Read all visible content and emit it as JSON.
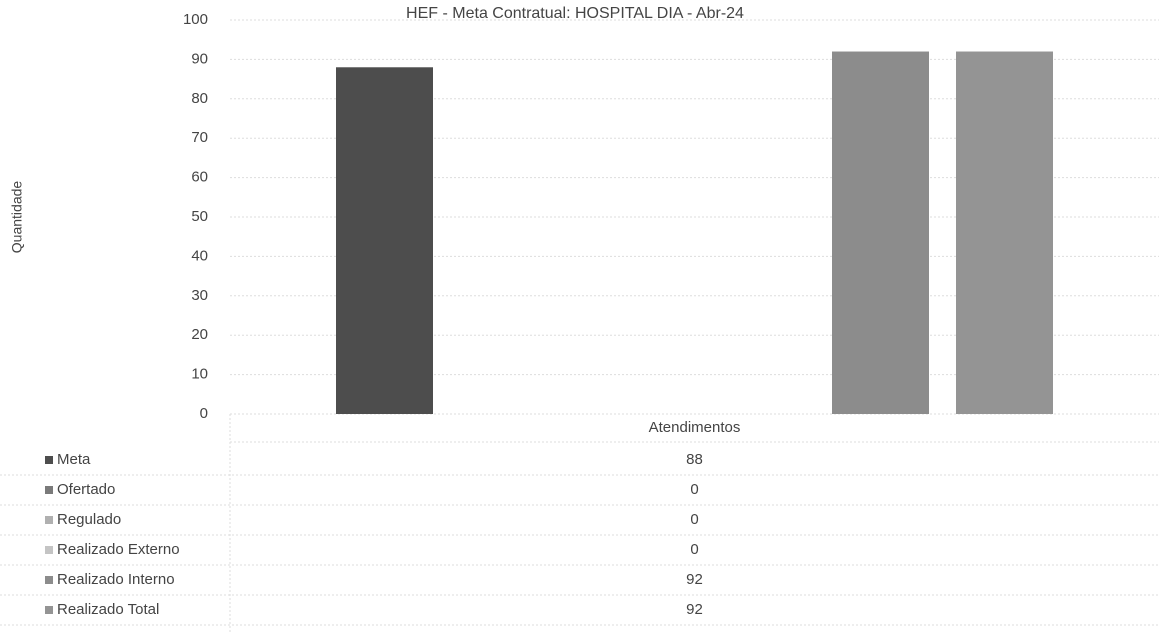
{
  "chart_data": {
    "type": "bar",
    "title": "HEF - Meta Contratual: HOSPITAL DIA - Abr-24",
    "y_label": "Quantidade",
    "categories": [
      "Atendimentos"
    ],
    "series": [
      {
        "name": "Meta",
        "color": "#4d4d4d",
        "values": [
          88
        ]
      },
      {
        "name": "Ofertado",
        "color": "#7a7a7a",
        "values": [
          0
        ]
      },
      {
        "name": "Regulado",
        "color": "#b0b0b0",
        "values": [
          0
        ]
      },
      {
        "name": "Realizado Externo",
        "color": "#c4c4c4",
        "values": [
          0
        ]
      },
      {
        "name": "Realizado Interno",
        "color": "#8c8c8c",
        "values": [
          92
        ]
      },
      {
        "name": "Realizado Total",
        "color": "#949494",
        "values": [
          92
        ]
      }
    ],
    "ylim": [
      0,
      100
    ],
    "yticks": [
      0,
      10,
      20,
      30,
      40,
      50,
      60,
      70,
      80,
      90,
      100
    ],
    "grid": true
  }
}
